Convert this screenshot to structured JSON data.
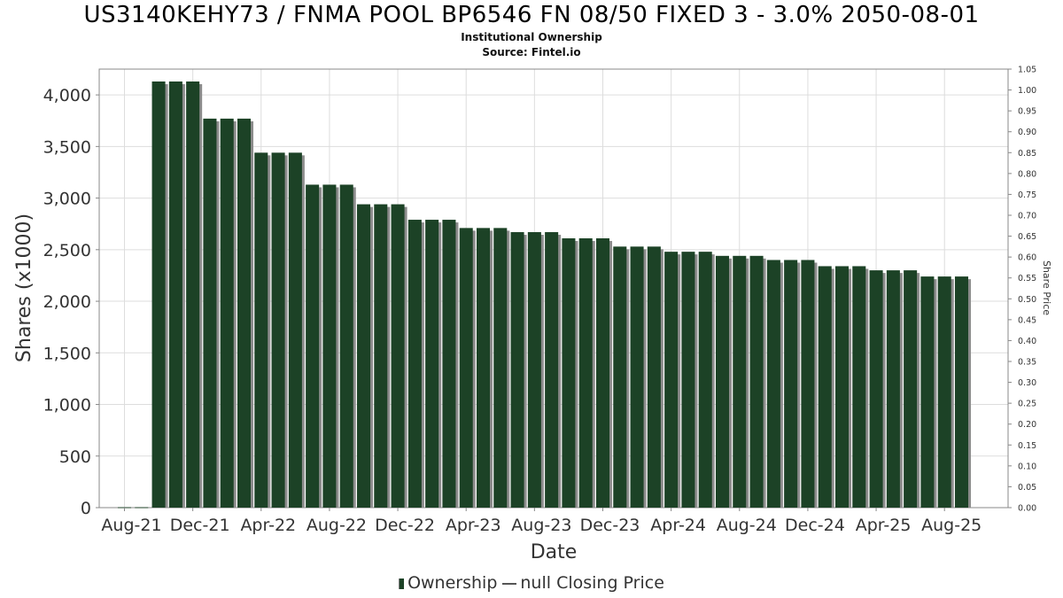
{
  "title": "US3140KEHY73 / FNMA POOL BP6546 FN 08/50 FIXED 3 - 3.0% 2050-08-01",
  "subtitle1": "Institutional Ownership",
  "subtitle2": "Source: Fintel.io",
  "legend": {
    "ownership": "Ownership",
    "price": "null Closing Price"
  },
  "colors": {
    "bar": "#1c4226",
    "bar_shadow": "#8c8c8c",
    "grid": "#dddddd"
  },
  "chart_data": {
    "type": "bar",
    "xlabel": "Date",
    "ylabel": "Shares (x1000)",
    "y2label": "Share Price",
    "ylim": [
      0,
      4250
    ],
    "y2lim": [
      0,
      1.05
    ],
    "grid": true,
    "legend_position": "bottom",
    "x_ticks": [
      "Aug-21",
      "Dec-21",
      "Apr-22",
      "Aug-22",
      "Dec-22",
      "Apr-23",
      "Aug-23",
      "Dec-23",
      "Apr-24",
      "Aug-24",
      "Dec-24",
      "Apr-25",
      "Aug-25"
    ],
    "y_ticks": [
      "0",
      "500",
      "1,000",
      "1,500",
      "2,000",
      "2,500",
      "3,000",
      "3,500",
      "4,000"
    ],
    "y2_ticks": [
      "0.00",
      "0.05",
      "0.10",
      "0.15",
      "0.20",
      "0.25",
      "0.30",
      "0.35",
      "0.40",
      "0.45",
      "0.50",
      "0.55",
      "0.60",
      "0.65",
      "0.70",
      "0.75",
      "0.80",
      "0.85",
      "0.90",
      "0.95",
      "1.00",
      "1.05"
    ],
    "series": [
      {
        "name": "Ownership",
        "values": [
          0,
          0,
          4130,
          4130,
          4130,
          3770,
          3770,
          3770,
          3440,
          3440,
          3440,
          3130,
          3130,
          3130,
          2940,
          2940,
          2940,
          2790,
          2790,
          2790,
          2710,
          2710,
          2710,
          2670,
          2670,
          2670,
          2610,
          2610,
          2610,
          2530,
          2530,
          2530,
          2480,
          2480,
          2480,
          2440,
          2440,
          2440,
          2400,
          2400,
          2400,
          2340,
          2340,
          2340,
          2300,
          2300,
          2300,
          2240,
          2240,
          2240
        ]
      }
    ]
  }
}
